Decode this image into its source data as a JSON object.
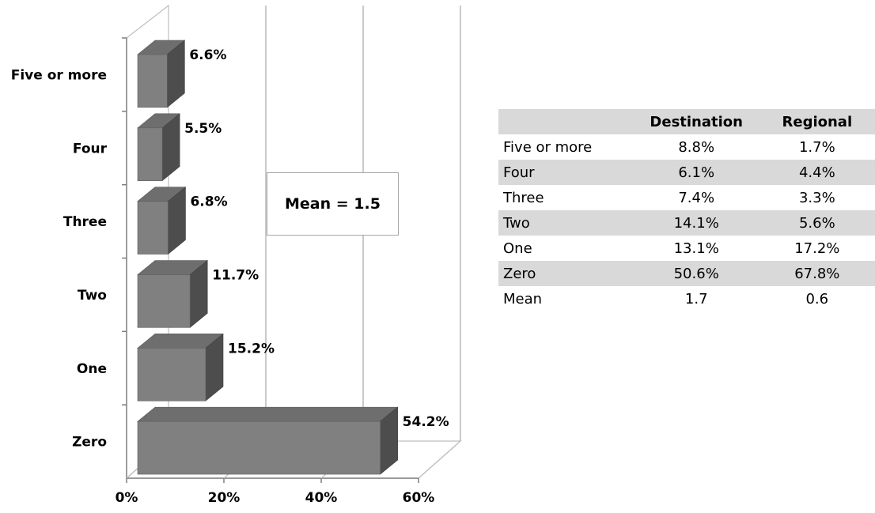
{
  "chart_data": {
    "type": "bar",
    "orientation": "horizontal",
    "three_d": true,
    "categories": [
      "Five or more",
      "Four",
      "Three",
      "Two",
      "One",
      "Zero"
    ],
    "values": [
      6.6,
      5.5,
      6.8,
      11.7,
      15.2,
      54.2
    ],
    "data_labels": [
      "6.6%",
      "5.5%",
      "6.8%",
      "11.7%",
      "15.2%",
      "54.2%"
    ],
    "xlim": [
      0,
      60
    ],
    "xticks": [
      0,
      20,
      40,
      60
    ],
    "xtick_labels": [
      "0%",
      "20%",
      "40%",
      "60%"
    ],
    "grid": true,
    "bar_color": "#808080",
    "bar_top_color": "#6e6e6e",
    "bar_side_color": "#4d4d4d",
    "annotation": "Mean = 1.5"
  },
  "table": {
    "headers": [
      "",
      "Destination",
      "Regional"
    ],
    "rows": [
      {
        "label": "Five or more",
        "destination": "8.8%",
        "regional": "1.7%"
      },
      {
        "label": "Four",
        "destination": "6.1%",
        "regional": "4.4%"
      },
      {
        "label": "Three",
        "destination": "7.4%",
        "regional": "3.3%"
      },
      {
        "label": "Two",
        "destination": "14.1%",
        "regional": "5.6%"
      },
      {
        "label": "One",
        "destination": "13.1%",
        "regional": "17.2%"
      },
      {
        "label": "Zero",
        "destination": "50.6%",
        "regional": "67.8%"
      },
      {
        "label": "Mean",
        "destination": "1.7",
        "regional": "0.6"
      }
    ]
  }
}
